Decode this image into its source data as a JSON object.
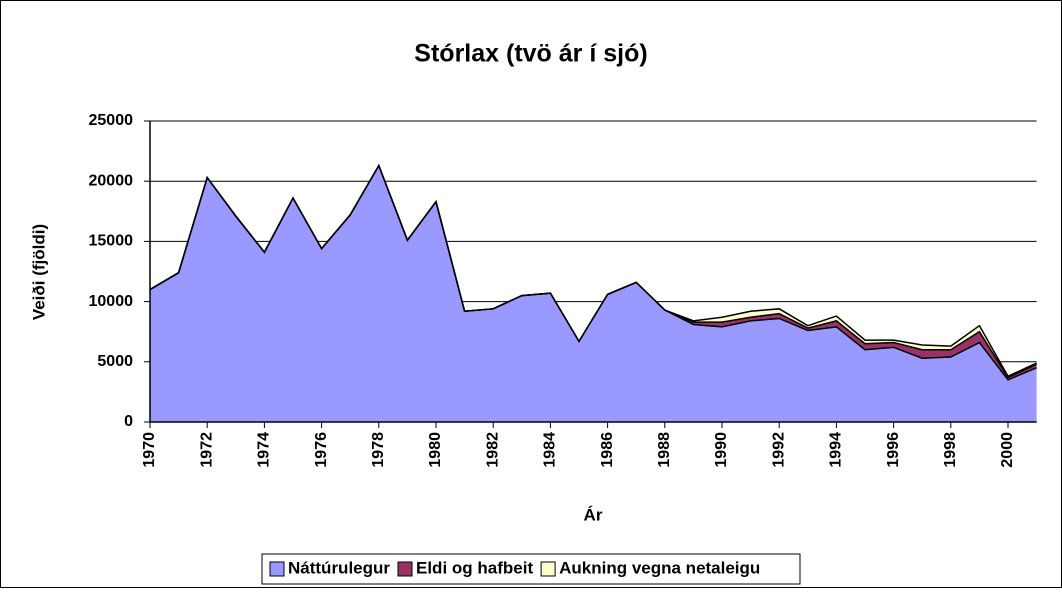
{
  "chart_data": {
    "type": "stacked-area",
    "title": "Stórlax (tvö ár í sjó)",
    "x_label": "Ár",
    "y_label": "Veiði (fjöldi)",
    "x": [
      1970,
      1971,
      1972,
      1973,
      1974,
      1975,
      1976,
      1977,
      1978,
      1979,
      1980,
      1981,
      1982,
      1983,
      1984,
      1985,
      1986,
      1987,
      1988,
      1989,
      1990,
      1991,
      1992,
      1993,
      1994,
      1995,
      1996,
      1997,
      1998,
      1999,
      2000,
      2001
    ],
    "xlim": [
      1970,
      2001
    ],
    "xticks": [
      1970,
      1972,
      1974,
      1976,
      1978,
      1980,
      1982,
      1984,
      1986,
      1988,
      1990,
      1992,
      1994,
      1996,
      1998,
      2000
    ],
    "ylim": [
      0,
      25000
    ],
    "yticks": [
      0,
      5000,
      10000,
      15000,
      20000,
      25000
    ],
    "grid": true,
    "legend": "bottom",
    "series": [
      {
        "name": "Náttúrulegur",
        "color": "#9999ff",
        "values": [
          11000,
          12400,
          20300,
          17100,
          14100,
          18600,
          14400,
          17200,
          21300,
          15100,
          18300,
          9200,
          9400,
          10500,
          10700,
          6700,
          10600,
          11600,
          9300,
          8100,
          7900,
          8400,
          8600,
          7600,
          7900,
          6000,
          6200,
          5300,
          5400,
          6600,
          3500,
          4500
        ]
      },
      {
        "name": "Eldi og hafbeit",
        "color": "#993366",
        "values": [
          0,
          0,
          0,
          0,
          0,
          0,
          0,
          0,
          0,
          0,
          0,
          0,
          0,
          0,
          0,
          0,
          0,
          0,
          0,
          200,
          400,
          300,
          400,
          200,
          500,
          500,
          400,
          700,
          600,
          900,
          200,
          300
        ]
      },
      {
        "name": "Aukning vegna netaleigu",
        "color": "#ffffcc",
        "values": [
          0,
          0,
          0,
          0,
          0,
          0,
          0,
          0,
          0,
          0,
          0,
          0,
          0,
          0,
          0,
          0,
          0,
          0,
          0,
          100,
          400,
          500,
          400,
          200,
          400,
          300,
          200,
          400,
          300,
          500,
          100,
          100
        ]
      }
    ]
  }
}
